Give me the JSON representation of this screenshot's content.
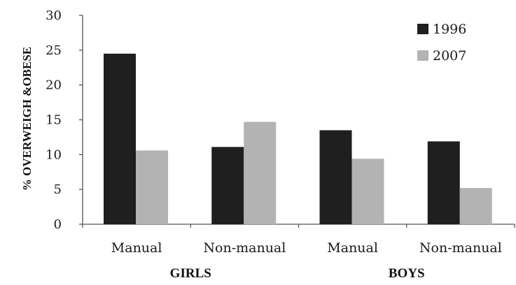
{
  "chart_data": {
    "type": "bar",
    "categories": [
      "Manual",
      "Non-manual",
      "Manual",
      "Non-manual"
    ],
    "groups": [
      {
        "label": "GIRLS",
        "span": [
          0,
          1
        ]
      },
      {
        "label": "BOYS",
        "span": [
          2,
          3
        ]
      }
    ],
    "series": [
      {
        "name": "1996",
        "values": [
          24.5,
          11.1,
          13.5,
          11.9
        ],
        "color": "#1f1f1f"
      },
      {
        "name": "2007",
        "values": [
          10.6,
          14.7,
          9.4,
          5.2
        ],
        "color": "#b3b3b3"
      }
    ],
    "ylabel": "% OVERWEIGH &OBESE",
    "xlabel": "",
    "ylim": [
      0,
      30
    ],
    "yticks": [
      0,
      5,
      10,
      15,
      20,
      25,
      30
    ],
    "grid": false,
    "legend_position": "top-right"
  }
}
